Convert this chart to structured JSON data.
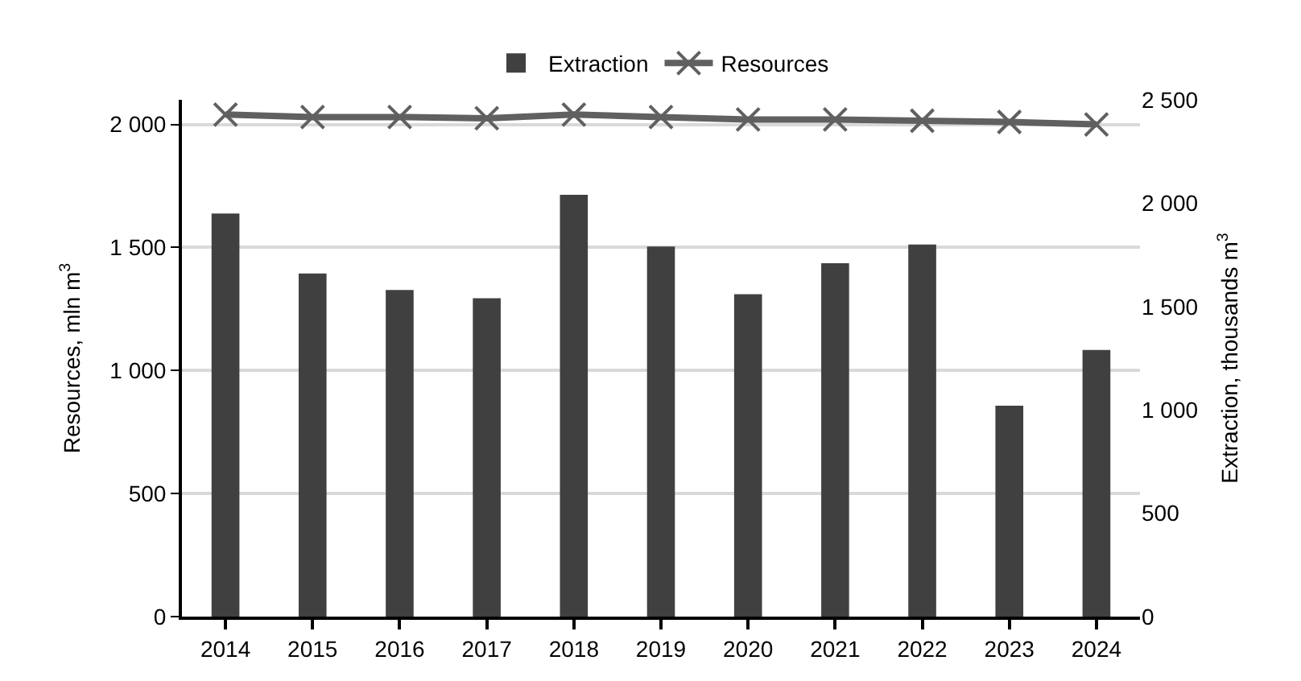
{
  "chart_data": {
    "type": "bar",
    "categories": [
      "2014",
      "2015",
      "2016",
      "2017",
      "2018",
      "2019",
      "2020",
      "2021",
      "2022",
      "2023",
      "2024"
    ],
    "series": [
      {
        "name": "Extraction",
        "axis": "y2",
        "color": "#404040",
        "values": [
          1950,
          1660,
          1580,
          1540,
          2040,
          1790,
          1560,
          1710,
          1800,
          1020,
          1290
        ]
      },
      {
        "name": "Resources",
        "type": "line",
        "color": "#606060",
        "marker": "cross",
        "values": [
          2040,
          2030,
          2030,
          2025,
          2040,
          2030,
          2020,
          2020,
          2015,
          2010,
          2000
        ]
      }
    ],
    "ylabel": "Resources, mln m$^{3}$",
    "y2label": "Extraction, thousands m$^{3}$",
    "ylim": [
      0,
      2100
    ],
    "yticks": [
      0,
      500,
      {
        "value": 1000,
        "label": "1 000"
      },
      {
        "value": 1500,
        "label": "1 500"
      },
      {
        "value": 2000,
        "label": "2 000"
      }
    ],
    "y2lim": [
      0,
      2500
    ],
    "y2ticks": [
      0,
      500,
      {
        "value": 1000,
        "label": "1 000"
      },
      {
        "value": 1500,
        "label": "1 500"
      },
      {
        "value": 2000,
        "label": "2 000"
      },
      {
        "value": 2500,
        "label": "2 500"
      }
    ],
    "grid": "y",
    "legend": "top"
  }
}
